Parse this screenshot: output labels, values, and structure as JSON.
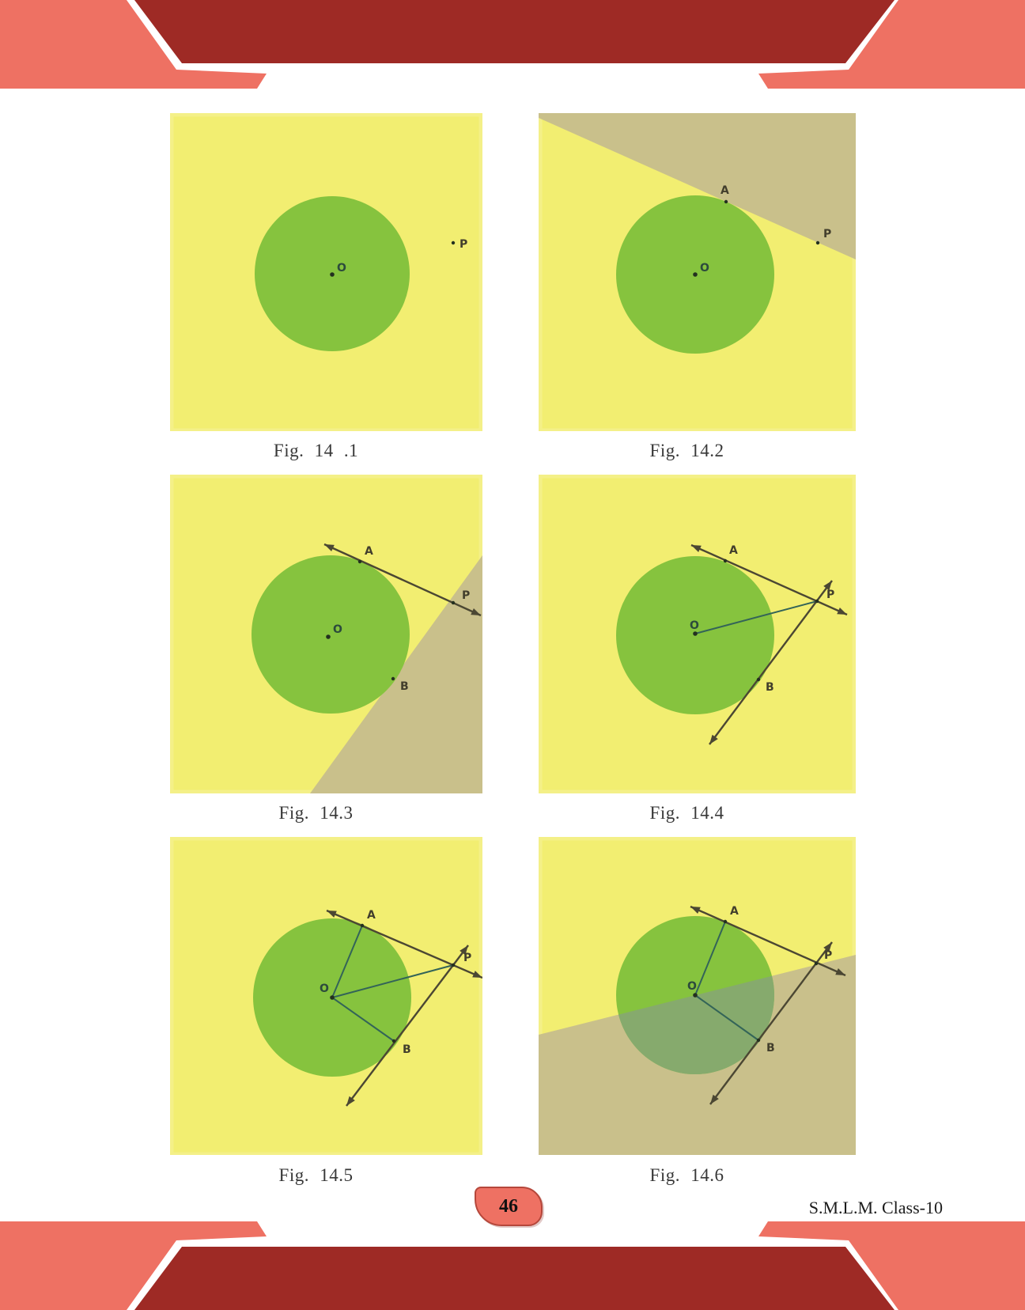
{
  "page": {
    "number": "46",
    "footer_right": "S.M.L.M. Class-10"
  },
  "colors": {
    "salmon": "#ee7163",
    "dark_red": "#9e2a25",
    "panel_yellow": "#f2ee71",
    "panel_edge": "#f6f29b",
    "circle_green": "#86c33e",
    "tan": "#c9c08b",
    "overlap_sage": "#86aa6d",
    "line_dark": "#4b4733",
    "line_teal": "#336458",
    "label_dark": "#423e2c",
    "label_o": "#2c4b3c",
    "dot": "#23301f"
  },
  "figures": [
    {
      "caption": "Fig. 14 .1",
      "labels": {
        "o": "O",
        "p": "P"
      }
    },
    {
      "caption": "Fig. 14.2",
      "labels": {
        "o": "O",
        "a": "A",
        "p": "P"
      }
    },
    {
      "caption": "Fig. 14.3",
      "labels": {
        "o": "O",
        "a": "A",
        "b": "B",
        "p": "P"
      }
    },
    {
      "caption": "Fig. 14.4",
      "labels": {
        "o": "O",
        "a": "A",
        "b": "B",
        "p": "P"
      }
    },
    {
      "caption": "Fig. 14.5",
      "labels": {
        "o": "O",
        "a": "A",
        "b": "B",
        "p": "P"
      }
    },
    {
      "caption": "Fig. 14.6",
      "labels": {
        "o": "O",
        "a": "A",
        "b": "B",
        "p": "P"
      }
    }
  ]
}
